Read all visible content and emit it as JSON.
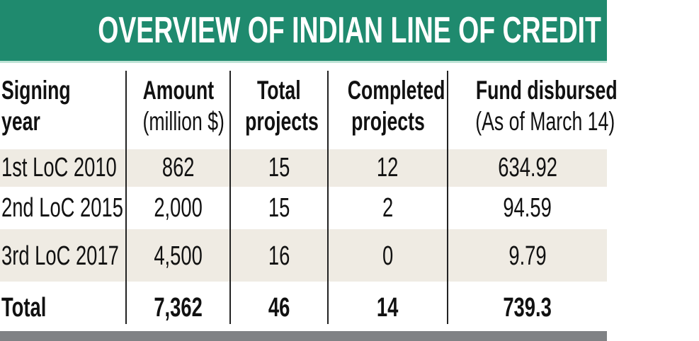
{
  "title": "OVERVIEW OF INDIAN LINE OF CREDIT",
  "colors": {
    "title_bg": "#1f8a6e",
    "stripe": "#efebe3",
    "footer_bar": "#808285"
  },
  "headers": [
    {
      "main": "Signing",
      "sub": "year"
    },
    {
      "main": "Amount",
      "sub": "(million $)"
    },
    {
      "main": "Total",
      "sub": "projects"
    },
    {
      "main": "Completed",
      "sub": "projects"
    },
    {
      "main": "Fund disbursed",
      "sub": "(As of March 14)"
    }
  ],
  "rows": [
    [
      "1st LoC 2010",
      "862",
      "15",
      "12",
      "634.92"
    ],
    [
      "2nd LoC 2015",
      "2,000",
      "15",
      "2",
      "94.59"
    ],
    [
      "3rd LoC 2017",
      "4,500",
      "16",
      "0",
      "9.79"
    ]
  ],
  "total": [
    "Total",
    "7,362",
    "46",
    "14",
    "739.3"
  ]
}
